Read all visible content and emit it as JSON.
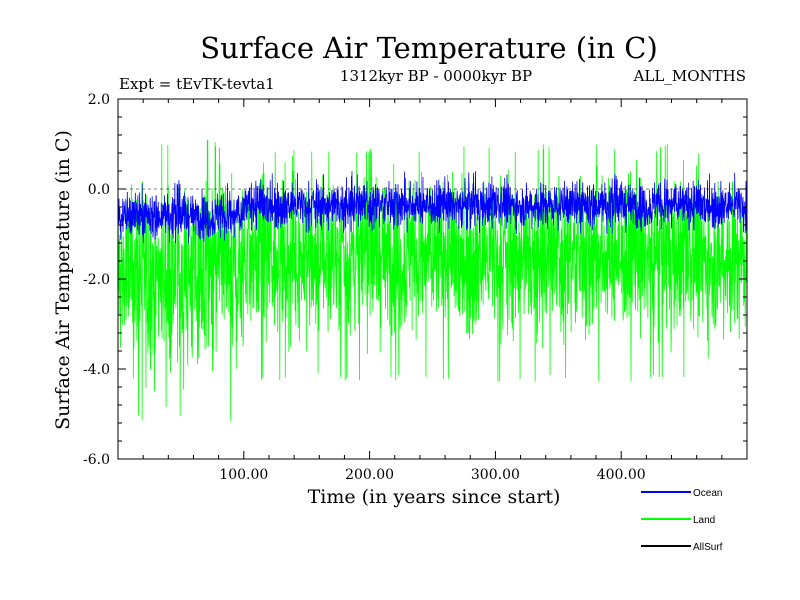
{
  "chart_data": {
    "type": "line",
    "title": "Surface Air Temperature (in C)",
    "subtitle_left": "Expt = tEvTK-tevta1",
    "subtitle_center": "1312kyr BP - 0000kyr BP",
    "subtitle_right": "ALL_MONTHS",
    "xlabel": "Time (in years since start)",
    "ylabel": "Surface Air Temperature (in C)",
    "xlim": [
      0,
      500
    ],
    "ylim": [
      -6.0,
      2.0
    ],
    "x_ticks": [
      100,
      200,
      300,
      400
    ],
    "x_tick_labels": [
      "100.00",
      "200.00",
      "300.00",
      "400.00"
    ],
    "y_ticks": [
      2.0,
      0.0,
      -2.0,
      -4.0,
      -6.0
    ],
    "y_tick_labels": [
      "2.0",
      "0.0",
      "-2.0",
      "-4.0",
      "-6.0"
    ],
    "legend_position": "bottom-right",
    "series": [
      {
        "name": "Land",
        "color": "#00ff00",
        "style": "noisy-band",
        "segments": [
          {
            "x_start": 0,
            "x_end": 100,
            "mean": -1.9,
            "half_range": 2.0,
            "min": -5.2,
            "max": 1.1
          },
          {
            "x_start": 100,
            "x_end": 500,
            "mean": -1.5,
            "half_range": 1.7,
            "min": -4.3,
            "max": 1.0
          }
        ]
      },
      {
        "name": "Ocean",
        "color": "#0000ff",
        "style": "noisy-band",
        "segments": [
          {
            "x_start": 0,
            "x_end": 100,
            "mean": -0.6,
            "half_range": 0.5,
            "min": -1.2,
            "max": 0.3
          },
          {
            "x_start": 100,
            "x_end": 500,
            "mean": -0.35,
            "half_range": 0.5,
            "min": -1.0,
            "max": 0.4
          }
        ]
      },
      {
        "name": "AllSurf",
        "color": "#000000",
        "style": "line",
        "segments": []
      }
    ]
  }
}
